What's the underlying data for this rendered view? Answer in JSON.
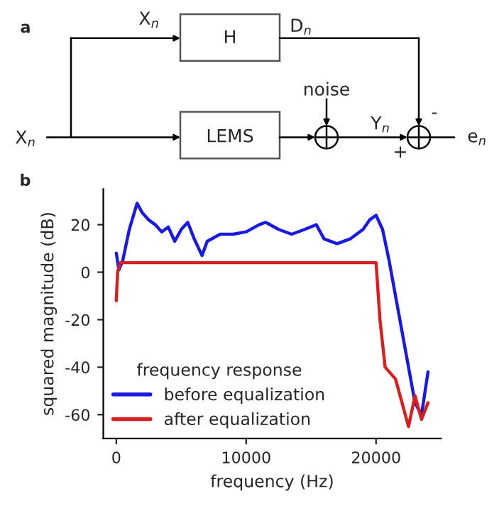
{
  "chart_data": [
    {
      "type": "other",
      "title": "a",
      "annotations": [
        "X$_{n}$",
        "H",
        "D$_{n}$",
        "noise",
        "X$_{n}$",
        "LEMS",
        "Y$_{n}$",
        "-",
        "+",
        "e$_{n}$"
      ]
    },
    {
      "type": "line",
      "title": "b",
      "xlabel": "frequency (Hz)",
      "ylabel": "squared magnitude (dB)",
      "legend_title": "frequency response",
      "legend": "bottom left",
      "xlim": [
        -1000,
        25000
      ],
      "xticks": [
        0,
        10000,
        20000
      ],
      "ylim": [
        -70,
        35
      ],
      "yticks": [
        20,
        0,
        -20,
        -40,
        -60
      ],
      "grid": false,
      "line_style": "solid",
      "marker": "none",
      "series": [
        {
          "name": "before equalization",
          "color": "#1a1adf",
          "x": [
            0,
            200,
            500,
            1000,
            1600,
            2000,
            2500,
            3000,
            3500,
            4000,
            4500,
            5000,
            5500,
            6000,
            6600,
            7000,
            8000,
            9000,
            10000,
            11000,
            11500,
            12500,
            13500,
            14500,
            15400,
            16000,
            17000,
            18000,
            19000,
            19500,
            20000,
            20500,
            21000,
            21500,
            22000,
            22500,
            23000,
            23500,
            24000
          ],
          "values": [
            8,
            1,
            5,
            18,
            29,
            25,
            22,
            20,
            17,
            19,
            13,
            18,
            21,
            14,
            7,
            13,
            16,
            16,
            17,
            20,
            21,
            18,
            16,
            18,
            20,
            14,
            12,
            14,
            18,
            22,
            24,
            18,
            5,
            -10,
            -25,
            -40,
            -55,
            -60,
            -42
          ]
        },
        {
          "name": "after equalization",
          "color": "#d42020",
          "x": [
            0,
            100,
            300,
            20000,
            20300,
            20700,
            21500,
            22000,
            22500,
            23000,
            23500,
            24000
          ],
          "values": [
            -12,
            0,
            4,
            4,
            -20,
            -40,
            -45,
            -55,
            -65,
            -52,
            -62,
            -55
          ]
        }
      ]
    }
  ]
}
